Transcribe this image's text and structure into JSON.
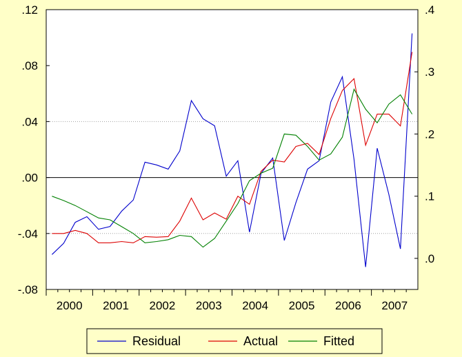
{
  "chart_data": {
    "type": "line",
    "title": "",
    "x_labels": [
      "2000",
      "2001",
      "2002",
      "2003",
      "2004",
      "2005",
      "2006",
      "2007"
    ],
    "left_axis": {
      "range": [
        -0.08,
        0.12
      ],
      "ticks": [
        -0.08,
        -0.04,
        0.0,
        0.04,
        0.08,
        0.12
      ],
      "tick_labels": [
        "-.08",
        "-.04",
        ".00",
        ".04",
        ".08",
        ".12"
      ]
    },
    "right_axis": {
      "range": [
        -0.05,
        0.4
      ],
      "ticks": [
        0.0,
        0.1,
        0.2,
        0.3,
        0.4
      ],
      "tick_labels": [
        ".0",
        ".1",
        ".2",
        ".3",
        ".4"
      ]
    },
    "quarters": [
      "2000Q1",
      "2000Q2",
      "2000Q3",
      "2000Q4",
      "2001Q1",
      "2001Q2",
      "2001Q3",
      "2001Q4",
      "2002Q1",
      "2002Q2",
      "2002Q3",
      "2002Q4",
      "2003Q1",
      "2003Q2",
      "2003Q3",
      "2003Q4",
      "2004Q1",
      "2004Q2",
      "2004Q3",
      "2004Q4",
      "2005Q1",
      "2005Q2",
      "2005Q3",
      "2005Q4",
      "2006Q1",
      "2006Q2",
      "2006Q3",
      "2006Q4",
      "2007Q1",
      "2007Q2",
      "2007Q3",
      "2007Q4"
    ],
    "series": [
      {
        "name": "Residual",
        "axis": "left",
        "color": "#0000cc",
        "values": [
          -0.055,
          -0.047,
          -0.032,
          -0.028,
          -0.037,
          -0.035,
          -0.024,
          -0.016,
          0.011,
          0.009,
          0.006,
          0.019,
          0.055,
          0.042,
          0.037,
          0.001,
          0.012,
          -0.039,
          0.003,
          0.014,
          -0.045,
          -0.018,
          0.006,
          0.012,
          0.054,
          0.072,
          0.013,
          -0.064,
          0.021,
          -0.012,
          -0.051,
          0.103
        ]
      },
      {
        "name": "Actual",
        "axis": "right",
        "color": "#dd0000",
        "values": [
          0.04,
          0.04,
          0.045,
          0.04,
          0.025,
          0.025,
          0.027,
          0.025,
          0.035,
          0.034,
          0.035,
          0.06,
          0.097,
          0.062,
          0.073,
          0.063,
          0.1,
          0.087,
          0.14,
          0.158,
          0.155,
          0.18,
          0.185,
          0.167,
          0.225,
          0.27,
          0.289,
          0.182,
          0.232,
          0.232,
          0.213,
          0.332
        ]
      },
      {
        "name": "Fitted",
        "axis": "right",
        "color": "#008000",
        "values": [
          0.1,
          0.093,
          0.085,
          0.075,
          0.065,
          0.062,
          0.051,
          0.04,
          0.025,
          0.027,
          0.03,
          0.037,
          0.035,
          0.018,
          0.032,
          0.06,
          0.088,
          0.125,
          0.137,
          0.145,
          0.2,
          0.198,
          0.18,
          0.158,
          0.168,
          0.195,
          0.272,
          0.24,
          0.218,
          0.248,
          0.263,
          0.232
        ]
      }
    ],
    "grid": true,
    "legend_position": "bottom"
  }
}
